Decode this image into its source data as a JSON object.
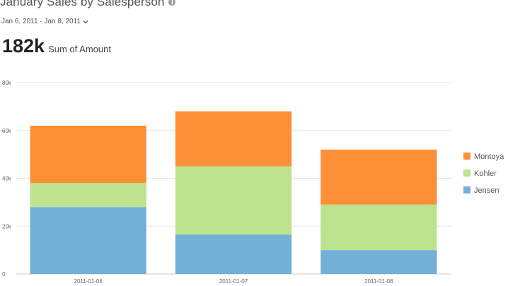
{
  "header": {
    "title": "January Sales by Salesperson",
    "info_icon": "info-icon",
    "date_range": "Jan 6, 2011 - Jan 8, 2011",
    "dropdown_icon": "chevron-down-icon"
  },
  "kpi": {
    "value": "182k",
    "label": "Sum of Amount"
  },
  "chart_data": {
    "type": "bar",
    "stacked": true,
    "categories": [
      "2011-01-06",
      "2011-01-07",
      "2011-01-08"
    ],
    "series": [
      {
        "name": "Jensen",
        "color": "#72b0d8",
        "values": [
          28000,
          16500,
          10000
        ]
      },
      {
        "name": "Kohler",
        "color": "#bde38e",
        "values": [
          10000,
          28500,
          19000
        ]
      },
      {
        "name": "Montoya",
        "color": "#fd8f37",
        "values": [
          24000,
          23000,
          23000
        ]
      }
    ],
    "y_ticks": [
      "0",
      "20k",
      "40k",
      "60k",
      "80k"
    ],
    "ylim": [
      0,
      80000
    ],
    "grid": true,
    "legend_position": "right"
  }
}
